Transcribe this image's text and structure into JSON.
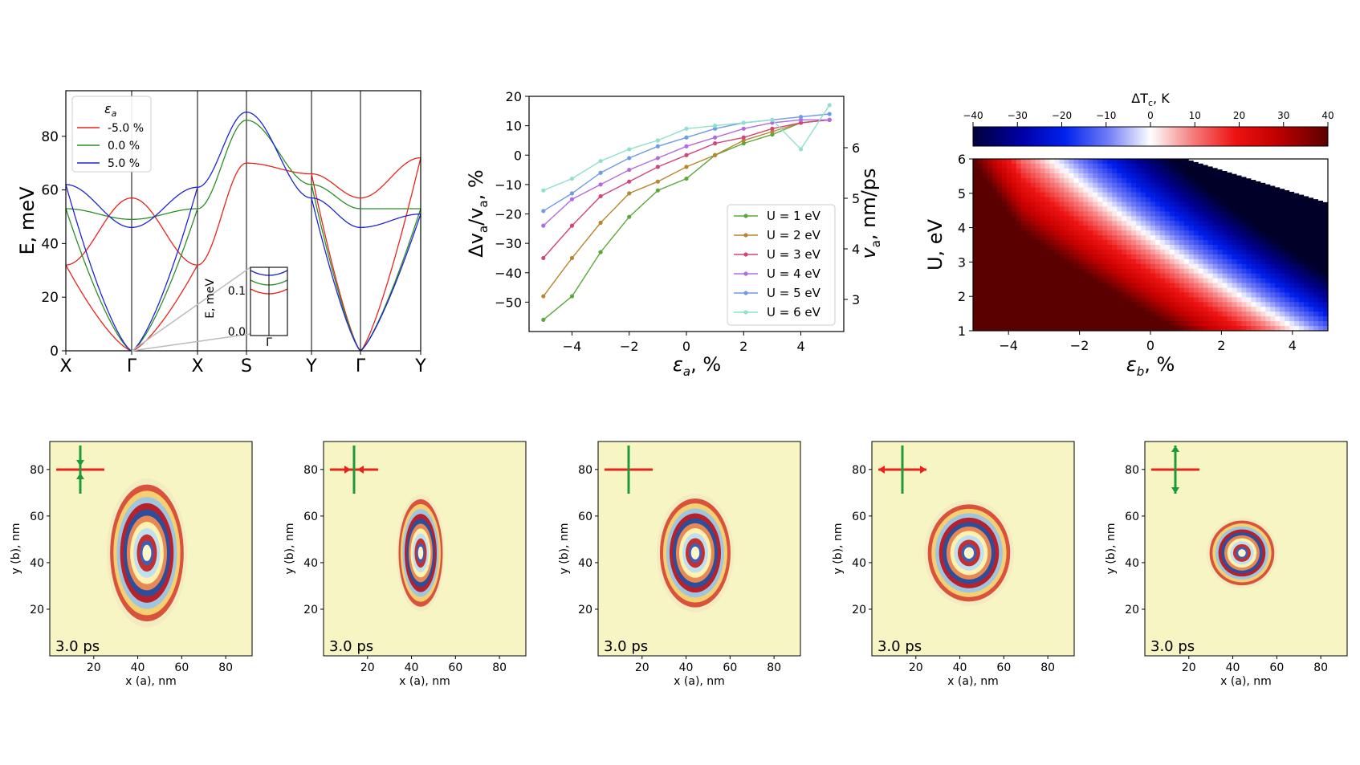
{
  "chart_data": [
    {
      "type": "line",
      "panel": "band-structure",
      "ylabel": "E, meV",
      "ylim": [
        0,
        97
      ],
      "yticks": [
        "0",
        "20",
        "40",
        "60",
        "80"
      ],
      "xticks": [
        "X",
        "Γ",
        "X",
        "S",
        "Y",
        "Γ",
        "Y"
      ],
      "legend": {
        "title": "ε",
        "title_sub": "a",
        "position": "top-left"
      },
      "series": [
        {
          "name": "-5.0 %",
          "color": "#e8231b",
          "values": [
            32,
            57,
            32,
            70,
            66,
            57,
            72
          ]
        },
        {
          "name": "0.0 %",
          "color": "#2a8f26",
          "values": [
            53,
            49,
            53,
            86,
            62,
            53,
            53
          ]
        },
        {
          "name": "5.0 %",
          "color": "#1e23d8",
          "values": [
            62,
            46,
            61,
            89,
            57,
            46,
            51
          ]
        }
      ],
      "inset": {
        "ylabel": "E, meV",
        "yticks": [
          "0.0",
          "0.1"
        ],
        "xtick": "Γ"
      }
    },
    {
      "type": "line",
      "panel": "velocity-change",
      "xlabel": "ε",
      "xlabel_sub": "a",
      "xlabel_unit": ", %",
      "ylabel_left": "Δv",
      "ylabel_left_sub": "a",
      "ylabel_left_rest": "/v",
      "ylabel_left_sub2": "a",
      "ylabel_left_unit": ", %",
      "ylabel_right": "v",
      "ylabel_right_sub": "a",
      "ylabel_right_unit": ", nm/ps",
      "xlim": [
        -5.5,
        5.5
      ],
      "ylim": [
        -60,
        20
      ],
      "x": [
        -5,
        -4,
        -3,
        -2,
        -1,
        0,
        1,
        2,
        3,
        4,
        5
      ],
      "xticks": [
        "−4",
        "−2",
        "0",
        "2",
        "4"
      ],
      "yticks": [
        "−50",
        "−40",
        "−30",
        "−20",
        "−10",
        "0",
        "10",
        "20"
      ],
      "right_ticks": [
        "3",
        "4",
        "5",
        "6"
      ],
      "legend_position": "lower-right",
      "series": [
        {
          "name": "U = 1 eV",
          "color": "#5aa83c",
          "values": [
            -56,
            -48,
            -33,
            -21,
            -12,
            -8,
            0,
            4,
            7,
            11,
            12
          ]
        },
        {
          "name": "U = 2 eV",
          "color": "#b8862e",
          "values": [
            -48,
            -35,
            -23,
            -13,
            -9,
            -4,
            0,
            5,
            8,
            11,
            12
          ]
        },
        {
          "name": "U = 3 eV",
          "color": "#d1467a",
          "values": [
            -35,
            -24,
            -14,
            -9,
            -4,
            0,
            4,
            6,
            9,
            11,
            12
          ]
        },
        {
          "name": "U = 4 eV",
          "color": "#b36be0",
          "values": [
            -24,
            -15,
            -10,
            -5,
            -1,
            3,
            6,
            9,
            11,
            12,
            12
          ]
        },
        {
          "name": "U = 5 eV",
          "color": "#6e9be8",
          "values": [
            -19,
            -13,
            -6,
            -1,
            3,
            6,
            9,
            11,
            12,
            13,
            14
          ]
        },
        {
          "name": "U = 6 eV",
          "color": "#8fe0cc",
          "values": [
            -12,
            -8,
            -2,
            2,
            5,
            9,
            10,
            11,
            12,
            2,
            17
          ]
        }
      ]
    },
    {
      "type": "heatmap",
      "panel": "tc-map",
      "colorbar_label": "ΔT",
      "colorbar_sub": "c",
      "colorbar_unit": ", K",
      "colorbar_ticks": [
        "−40",
        "−30",
        "−20",
        "−10",
        "0",
        "10",
        "20",
        "30",
        "40"
      ],
      "colorbar_range": [
        -40,
        40
      ],
      "xlabel": "ε",
      "xlabel_sub": "b",
      "xlabel_unit": ", %",
      "ylabel": "U, eV",
      "xlim": [
        -5,
        5
      ],
      "ylim": [
        1,
        6
      ],
      "xticks": [
        "−4",
        "−2",
        "0",
        "2",
        "4"
      ],
      "yticks": [
        "1",
        "2",
        "3",
        "4",
        "5",
        "6"
      ]
    },
    {
      "type": "heatmap",
      "panel": "wave-snapshots",
      "xlabel": "x (a), nm",
      "ylabel": "y (b), nm",
      "ticks": [
        "20",
        "40",
        "60",
        "80"
      ],
      "label": "3.0 ps",
      "frames": [
        {
          "rx": 50,
          "ry": 93,
          "arrows": "compress-y"
        },
        {
          "rx": 30,
          "ry": 73,
          "arrows": "compress-x"
        },
        {
          "rx": 48,
          "ry": 74,
          "arrows": "none"
        },
        {
          "rx": 56,
          "ry": 66,
          "arrows": "stretch-x"
        },
        {
          "rx": 44,
          "ry": 44,
          "arrows": "stretch-y"
        }
      ]
    }
  ]
}
